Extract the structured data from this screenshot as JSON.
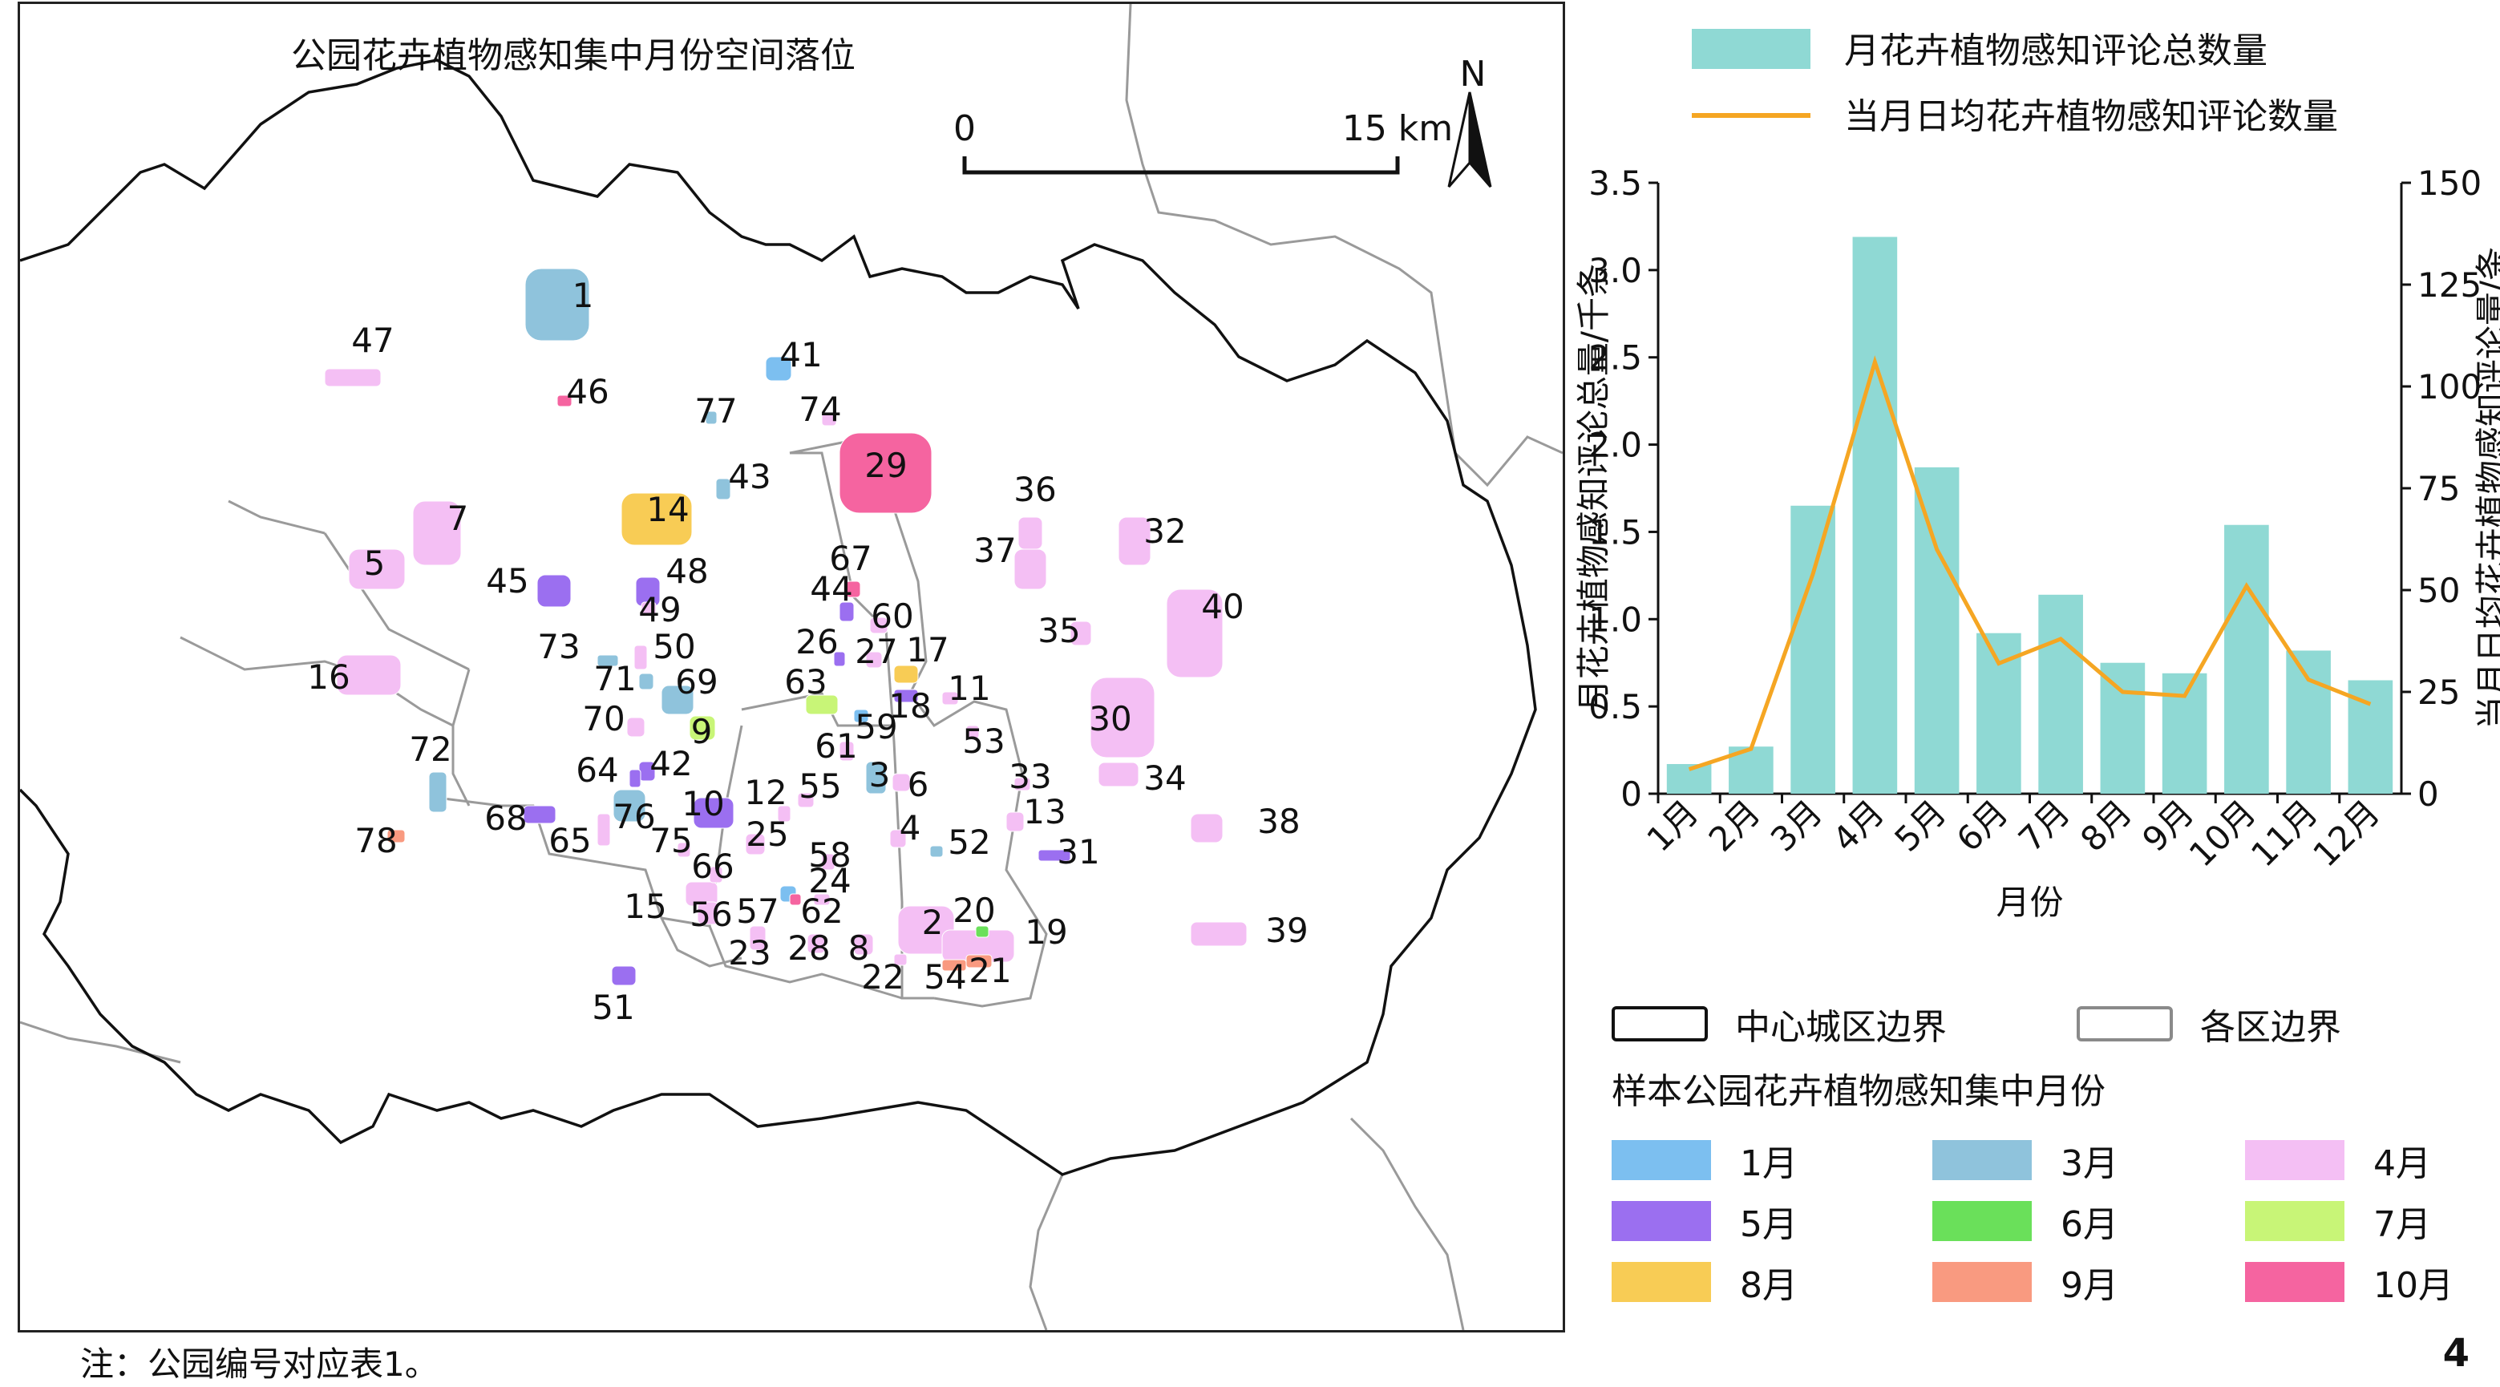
{
  "map": {
    "title": "公园花卉植物感知集中月份空间落位",
    "scale_zero": "0",
    "scale_end": "15 km",
    "north": "N",
    "parks": [
      {
        "id": "1",
        "month": "3月"
      },
      {
        "id": "2",
        "month": "4月"
      },
      {
        "id": "3",
        "month": "3月"
      },
      {
        "id": "4",
        "month": "4月"
      },
      {
        "id": "5",
        "month": "4月"
      },
      {
        "id": "6",
        "month": "4月"
      },
      {
        "id": "7",
        "month": "4月"
      },
      {
        "id": "8",
        "month": "4月"
      },
      {
        "id": "9",
        "month": "7月"
      },
      {
        "id": "10",
        "month": "5月"
      },
      {
        "id": "11",
        "month": "4月"
      },
      {
        "id": "12",
        "month": "4月"
      },
      {
        "id": "13",
        "month": "4月"
      },
      {
        "id": "14",
        "month": "8月"
      },
      {
        "id": "15",
        "month": "4月"
      },
      {
        "id": "16",
        "month": "4月"
      },
      {
        "id": "17",
        "month": "8月"
      },
      {
        "id": "18",
        "month": "5月"
      },
      {
        "id": "19",
        "month": "4月"
      },
      {
        "id": "20",
        "month": "6月"
      },
      {
        "id": "21",
        "month": "9月"
      },
      {
        "id": "22",
        "month": "4月"
      },
      {
        "id": "23",
        "month": "4月"
      },
      {
        "id": "24",
        "month": "4月"
      },
      {
        "id": "25",
        "month": "4月"
      },
      {
        "id": "26",
        "month": "5月"
      },
      {
        "id": "27",
        "month": "4月"
      },
      {
        "id": "28",
        "month": "4月"
      },
      {
        "id": "29",
        "month": "10月"
      },
      {
        "id": "30",
        "month": "4月"
      },
      {
        "id": "31",
        "month": "5月"
      },
      {
        "id": "32",
        "month": "4月"
      },
      {
        "id": "33",
        "month": "4月"
      },
      {
        "id": "34",
        "month": "4月"
      },
      {
        "id": "35",
        "month": "4月"
      },
      {
        "id": "36",
        "month": "4月"
      },
      {
        "id": "37",
        "month": "4月"
      },
      {
        "id": "38",
        "month": "4月"
      },
      {
        "id": "39",
        "month": "4月"
      },
      {
        "id": "40",
        "month": "4月"
      },
      {
        "id": "41",
        "month": "1月"
      },
      {
        "id": "42",
        "month": "5月"
      },
      {
        "id": "43",
        "month": "3月"
      },
      {
        "id": "44",
        "month": "5月"
      },
      {
        "id": "45",
        "month": "5月"
      },
      {
        "id": "46",
        "month": "10月"
      },
      {
        "id": "47",
        "month": "4月"
      },
      {
        "id": "48",
        "month": "5月"
      },
      {
        "id": "49",
        "month": "4月"
      },
      {
        "id": "50",
        "month": "4月"
      },
      {
        "id": "51",
        "month": "5月"
      },
      {
        "id": "52",
        "month": "3月"
      },
      {
        "id": "53",
        "month": "4月"
      },
      {
        "id": "54",
        "month": "9月"
      },
      {
        "id": "55",
        "month": "4月"
      },
      {
        "id": "56",
        "month": "4月"
      },
      {
        "id": "57",
        "month": "1月"
      },
      {
        "id": "58",
        "month": "4月"
      },
      {
        "id": "59",
        "month": "1月"
      },
      {
        "id": "60",
        "month": "4月"
      },
      {
        "id": "61",
        "month": "4月"
      },
      {
        "id": "62",
        "month": "10月"
      },
      {
        "id": "63",
        "month": "7月"
      },
      {
        "id": "64",
        "month": "5月"
      },
      {
        "id": "65",
        "month": "4月"
      },
      {
        "id": "66",
        "month": "4月"
      },
      {
        "id": "67",
        "month": "10月"
      },
      {
        "id": "68",
        "month": "5月"
      },
      {
        "id": "69",
        "month": "3月"
      },
      {
        "id": "70",
        "month": "4月"
      },
      {
        "id": "71",
        "month": "3月"
      },
      {
        "id": "72",
        "month": "3月"
      },
      {
        "id": "73",
        "month": "3月"
      },
      {
        "id": "74",
        "month": "4月"
      },
      {
        "id": "75",
        "month": "4月"
      },
      {
        "id": "76",
        "month": "3月"
      },
      {
        "id": "77",
        "month": "3月"
      },
      {
        "id": "78",
        "month": "9月"
      }
    ]
  },
  "chart_data": {
    "type": "bar",
    "categories": [
      "1月",
      "2月",
      "3月",
      "4月",
      "5月",
      "6月",
      "7月",
      "8月",
      "9月",
      "10月",
      "11月",
      "12月"
    ],
    "series": [
      {
        "name": "月花卉植物感知评论总数量",
        "type": "bar",
        "axis": "left",
        "color": "#8fd9d4",
        "values": [
          0.17,
          0.27,
          1.65,
          3.19,
          1.87,
          0.92,
          1.14,
          0.75,
          0.69,
          1.54,
          0.82,
          0.65
        ]
      },
      {
        "name": "当月日均花卉植物感知评论数量",
        "type": "line",
        "axis": "right",
        "color": "#f5a623",
        "values": [
          6,
          11,
          54,
          106,
          60,
          32,
          38,
          25,
          24,
          51,
          28,
          22
        ]
      }
    ],
    "xlabel": "月份",
    "ylabel_left": "月花卉植物感知评论总量/千条",
    "ylabel_right": "当月日均花卉植物感知评论量/条",
    "ylim_left": [
      0,
      3.5
    ],
    "ylim_right": [
      0,
      150
    ],
    "yticks_left": [
      "0",
      "0.5",
      "1.0",
      "1.5",
      "2.0",
      "2.5",
      "3.0",
      "3.5"
    ],
    "yticks_right": [
      "0",
      "25",
      "50",
      "75",
      "100",
      "125",
      "150"
    ],
    "legend_position": "top",
    "grid": false
  },
  "legend": {
    "central_boundary": "中心城区边界",
    "district_boundary": "各区边界",
    "month_title": "样本公园花卉植物感知集中月份",
    "months": [
      {
        "label": "1月",
        "color": "#7cbff0"
      },
      {
        "label": "3月",
        "color": "#8fc3dc"
      },
      {
        "label": "4月",
        "color": "#f4bff4"
      },
      {
        "label": "5月",
        "color": "#9b6ff0"
      },
      {
        "label": "6月",
        "color": "#6ae05a"
      },
      {
        "label": "7月",
        "color": "#c8f577"
      },
      {
        "label": "8月",
        "color": "#f8cc55"
      },
      {
        "label": "9月",
        "color": "#f99a80"
      },
      {
        "label": "10月",
        "color": "#f564a0"
      }
    ]
  },
  "note": "注：公园编号对应表1。",
  "page_number": "4"
}
